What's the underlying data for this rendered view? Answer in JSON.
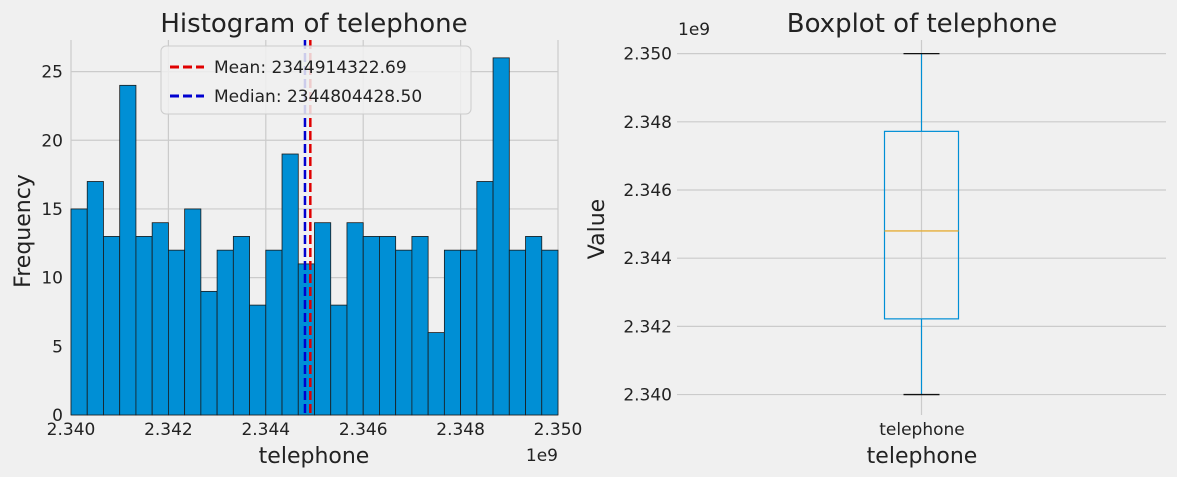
{
  "chart_data": [
    {
      "type": "bar",
      "title": "Histogram of telephone",
      "xlabel": "telephone",
      "ylabel": "Frequency",
      "x_offset_label": "1e9",
      "xlim": [
        2.34,
        2.35
      ],
      "ylim": [
        0,
        27.3
      ],
      "x_ticks": [
        "2.340",
        "2.342",
        "2.344",
        "2.346",
        "2.348",
        "2.350"
      ],
      "y_ticks": [
        "0",
        "5",
        "10",
        "15",
        "20",
        "25"
      ],
      "bin_edges_start": 2.34,
      "bin_edges_end": 2.35,
      "counts": [
        15,
        17,
        13,
        24,
        13,
        14,
        12,
        15,
        9,
        12,
        13,
        8,
        12,
        19,
        11,
        14,
        8,
        14,
        13,
        13,
        12,
        13,
        6,
        12,
        12,
        17,
        26,
        12,
        13,
        12
      ],
      "bar_color": "#008fd5",
      "mean": 2.34491432269,
      "median": 2.3448044285,
      "legend": [
        {
          "label": "Mean: 2344914322.69",
          "color": "#e00000"
        },
        {
          "label": "Median: 2344804428.50",
          "color": "#0000d0"
        }
      ],
      "legend_position": "top-center",
      "grid": true
    },
    {
      "type": "box",
      "title": "Boxplot of telephone",
      "xlabel": "telephone",
      "ylabel": "Value",
      "y_offset_label": "1e9",
      "category": "telephone",
      "ylim": [
        2.3394,
        2.3504
      ],
      "y_ticks": [
        "2.340",
        "2.342",
        "2.344",
        "2.346",
        "2.348",
        "2.350"
      ],
      "min": 2.34,
      "q1": 2.34222,
      "median": 2.3448,
      "q3": 2.34772,
      "max": 2.35,
      "box_color": "#008fd5",
      "median_color": "#e5ae38",
      "grid": true
    }
  ]
}
